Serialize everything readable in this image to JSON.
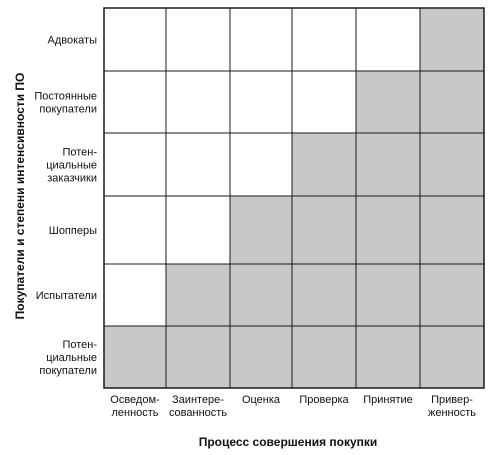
{
  "diagram": {
    "y_axis_title": "Покупатели и степени интенсивности ПО",
    "x_axis_title": "Процесс совершения покупки",
    "rows": [
      {
        "lines": [
          "Адвокаты"
        ]
      },
      {
        "lines": [
          "Постоянные",
          "покупатели"
        ]
      },
      {
        "lines": [
          "Потен-",
          "циальные",
          "заказчики"
        ]
      },
      {
        "lines": [
          "Шопперы"
        ]
      },
      {
        "lines": [
          "Испытатели"
        ]
      },
      {
        "lines": [
          "Потен-",
          "циальные",
          "покупатели"
        ]
      }
    ],
    "columns": [
      {
        "lines": [
          "Осведом-",
          "ленность"
        ]
      },
      {
        "lines": [
          "Заинтере-",
          "сованность"
        ]
      },
      {
        "lines": [
          "Оценка"
        ]
      },
      {
        "lines": [
          "Проверка"
        ]
      },
      {
        "lines": [
          "Принятие"
        ]
      },
      {
        "lines": [
          "Привер-",
          "женность"
        ]
      }
    ],
    "shaded": [
      [
        0,
        0,
        0,
        0,
        0,
        1
      ],
      [
        0,
        0,
        0,
        0,
        1,
        1
      ],
      [
        0,
        0,
        0,
        1,
        1,
        1
      ],
      [
        0,
        0,
        1,
        1,
        1,
        1
      ],
      [
        0,
        1,
        1,
        1,
        1,
        1
      ],
      [
        1,
        1,
        1,
        1,
        1,
        1
      ]
    ],
    "colors": {
      "shaded": "#c8c8c8",
      "blank": "#ffffff",
      "line": "#1a1a1a"
    }
  }
}
